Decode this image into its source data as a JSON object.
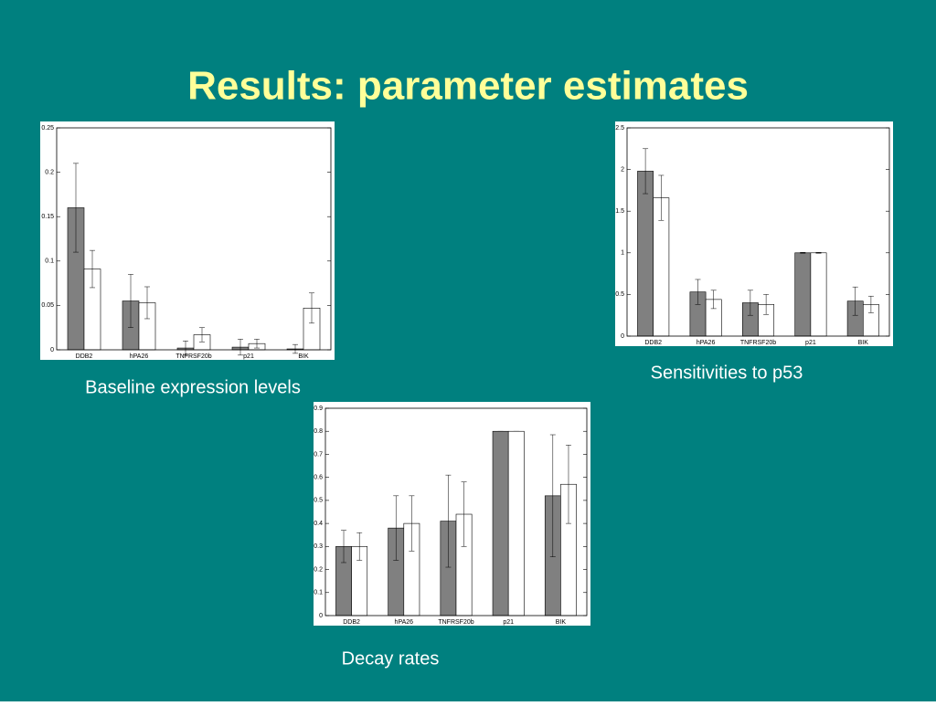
{
  "title": "Results: parameter estimates",
  "chart_data": [
    {
      "type": "bar",
      "title": "Baseline expression levels",
      "categories": [
        "DDB2",
        "hPA26",
        "TNFRSF20b",
        "p21",
        "BIK"
      ],
      "series": [
        {
          "color": "#808080",
          "values": [
            0.16,
            0.055,
            0.002,
            0.003,
            0.001
          ],
          "errors": [
            0.05,
            0.03,
            0.008,
            0.009,
            0.005
          ]
        },
        {
          "color": "#ffffff",
          "values": [
            0.091,
            0.053,
            0.017,
            0.007,
            0.047
          ],
          "errors": [
            0.021,
            0.018,
            0.008,
            0.005,
            0.017
          ]
        }
      ],
      "ylim": [
        0,
        0.25
      ],
      "yticks": [
        0,
        0.05,
        0.1,
        0.15,
        0.2,
        0.25
      ]
    },
    {
      "type": "bar",
      "title": "Sensitivities to p53",
      "categories": [
        "DDB2",
        "hPA26",
        "TNFRSF20b",
        "p21",
        "BIK"
      ],
      "series": [
        {
          "color": "#808080",
          "values": [
            1.98,
            0.53,
            0.4,
            1.0,
            0.42
          ],
          "errors": [
            0.27,
            0.15,
            0.15,
            0.005,
            0.17
          ]
        },
        {
          "color": "#ffffff",
          "values": [
            1.66,
            0.44,
            0.38,
            1.0,
            0.38
          ],
          "errors": [
            0.27,
            0.11,
            0.12,
            0.005,
            0.1
          ]
        }
      ],
      "ylim": [
        0,
        2.5
      ],
      "yticks": [
        0,
        0.5,
        1,
        1.5,
        2,
        2.5
      ]
    },
    {
      "type": "bar",
      "title": "Decay rates",
      "categories": [
        "DDB2",
        "hPA26",
        "TNFRSF20b",
        "p21",
        "BIK"
      ],
      "series": [
        {
          "color": "#808080",
          "values": [
            0.3,
            0.38,
            0.41,
            0.8,
            0.52
          ],
          "errors": [
            0.07,
            0.14,
            0.2,
            0,
            0.265
          ]
        },
        {
          "color": "#ffffff",
          "values": [
            0.3,
            0.4,
            0.44,
            0.8,
            0.57
          ],
          "errors": [
            0.06,
            0.12,
            0.14,
            0,
            0.17
          ]
        }
      ],
      "ylim": [
        0,
        0.9
      ],
      "yticks": [
        0,
        0.1,
        0.2,
        0.3,
        0.4,
        0.5,
        0.6,
        0.7,
        0.8,
        0.9
      ]
    }
  ]
}
